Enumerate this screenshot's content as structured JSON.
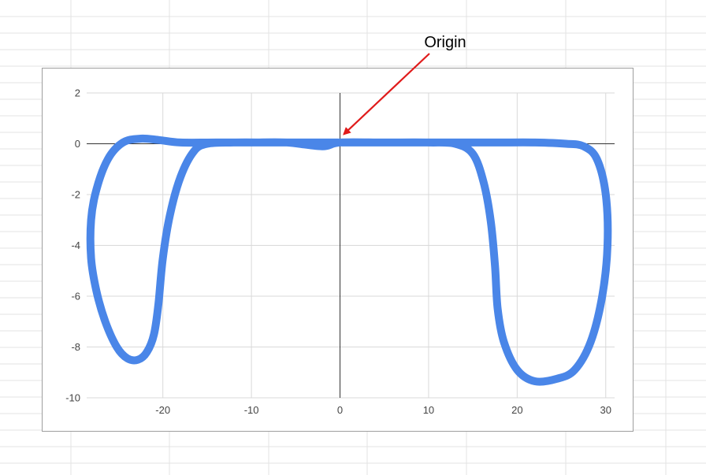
{
  "chart_data": {
    "type": "line",
    "title": "",
    "xlabel": "",
    "ylabel": "",
    "xlim": [
      -28.6,
      31
    ],
    "ylim": [
      -10,
      2
    ],
    "x_ticks": [
      -20,
      -10,
      0,
      10,
      20,
      30
    ],
    "y_ticks": [
      2,
      0,
      -2,
      -4,
      -6,
      -8,
      -10
    ],
    "grid": true,
    "legend": "none",
    "series": [
      {
        "color": "#4a86e8",
        "points": [
          [
            0,
            0.05
          ],
          [
            -4,
            0.05
          ],
          [
            -8,
            0.05
          ],
          [
            -12,
            0.05
          ],
          [
            -15,
            0.0
          ],
          [
            -16.5,
            -0.3
          ],
          [
            -18,
            -1.3
          ],
          [
            -19.2,
            -2.8
          ],
          [
            -20,
            -4.5
          ],
          [
            -20.5,
            -6.3
          ],
          [
            -21,
            -7.5
          ],
          [
            -21.8,
            -8.2
          ],
          [
            -22.8,
            -8.5
          ],
          [
            -24,
            -8.45
          ],
          [
            -25.2,
            -8.0
          ],
          [
            -26.5,
            -7.0
          ],
          [
            -27.5,
            -5.8
          ],
          [
            -28.1,
            -4.5
          ],
          [
            -28.1,
            -3.0
          ],
          [
            -27.5,
            -1.8
          ],
          [
            -26.2,
            -0.6
          ],
          [
            -24.5,
            0.05
          ],
          [
            -22.5,
            0.2
          ],
          [
            -20.5,
            0.15
          ],
          [
            -18,
            0.05
          ],
          [
            -14,
            0.05
          ],
          [
            -10,
            0.05
          ],
          [
            -6,
            0.05
          ],
          [
            -2,
            -0.1
          ],
          [
            0,
            0.05
          ],
          [
            5,
            0.05
          ],
          [
            10,
            0.05
          ],
          [
            13,
            0.0
          ],
          [
            15,
            -0.4
          ],
          [
            16.2,
            -1.5
          ],
          [
            17,
            -3.0
          ],
          [
            17.5,
            -4.8
          ],
          [
            17.8,
            -6.5
          ],
          [
            18.5,
            -7.8
          ],
          [
            20,
            -8.9
          ],
          [
            22,
            -9.35
          ],
          [
            24.5,
            -9.25
          ],
          [
            26.5,
            -8.9
          ],
          [
            28.3,
            -7.8
          ],
          [
            29.6,
            -6.0
          ],
          [
            30.2,
            -4.0
          ],
          [
            30,
            -2.0
          ],
          [
            29,
            -0.6
          ],
          [
            27.5,
            -0.1
          ],
          [
            25.5,
            0.0
          ],
          [
            22,
            0.05
          ],
          [
            18,
            0.05
          ],
          [
            14,
            0.05
          ],
          [
            10,
            0.05
          ],
          [
            5,
            0.05
          ],
          [
            0,
            0.05
          ]
        ]
      }
    ],
    "annotation": {
      "text": "Origin",
      "target": [
        0,
        0.1
      ]
    }
  }
}
